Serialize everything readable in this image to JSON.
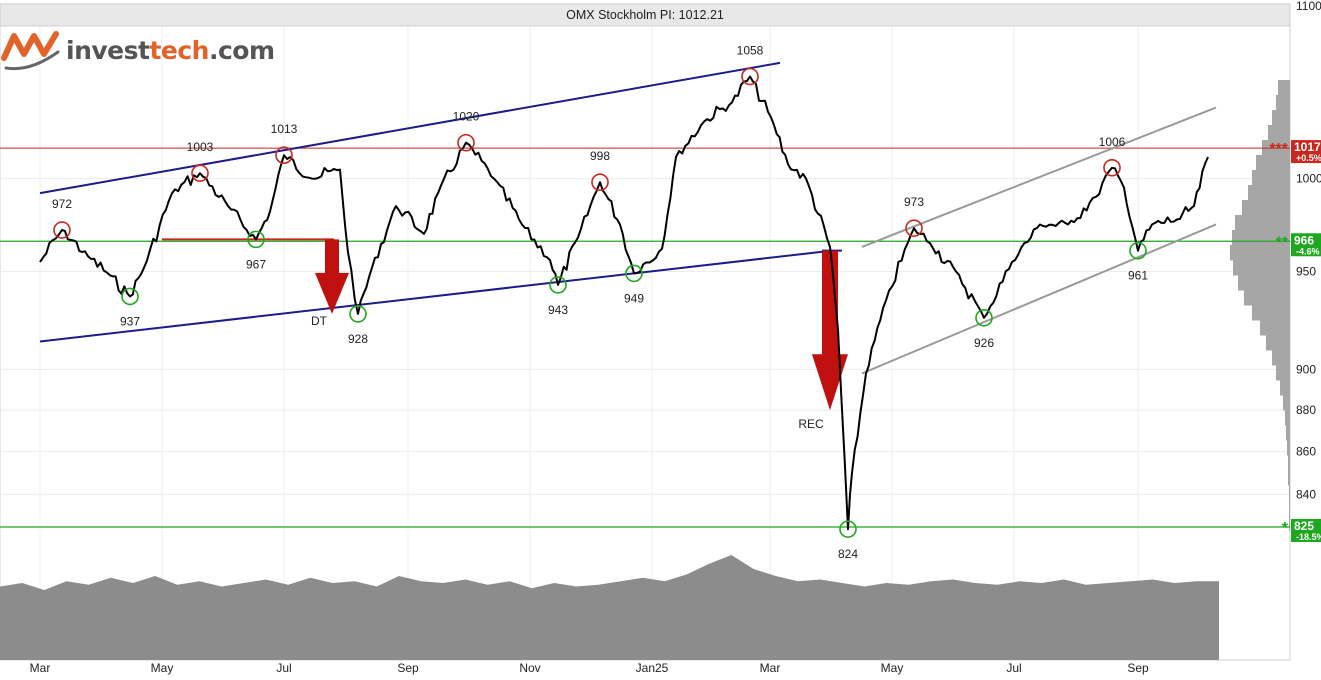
{
  "logo": {
    "part1": "invest",
    "part2": "tech",
    "part3": ".com"
  },
  "colors": {
    "price": "#000000",
    "resistance": "#c8281e",
    "support": "#1fa81f",
    "channel_blue": "#1c1c8c",
    "channel_gray": "#9a9a9a",
    "volume": "#8c8c8c",
    "arrow": "#c01010"
  },
  "chart_data": {
    "type": "line",
    "title": "OMX Stockholm PI: 1012.21",
    "last_value": 1012.21,
    "x_ticks": [
      "Mar",
      "May",
      "Jul",
      "Sep",
      "Nov",
      "Jan25",
      "Mar",
      "May",
      "Jul",
      "Sep"
    ],
    "y_ticks": [
      "1100",
      "1000",
      "950",
      "900",
      "880",
      "860",
      "840"
    ],
    "y_scale": "log",
    "ylim": [
      820,
      1100
    ],
    "price_series": [
      {
        "t": "2024-03-01",
        "v": 955
      },
      {
        "t": "2024-03-12",
        "v": 972
      },
      {
        "t": "2024-03-25",
        "v": 958
      },
      {
        "t": "2024-04-05",
        "v": 948
      },
      {
        "t": "2024-04-15",
        "v": 937
      },
      {
        "t": "2024-04-22",
        "v": 952
      },
      {
        "t": "2024-05-06",
        "v": 992
      },
      {
        "t": "2024-05-20",
        "v": 1003
      },
      {
        "t": "2024-06-03",
        "v": 985
      },
      {
        "t": "2024-06-17",
        "v": 967
      },
      {
        "t": "2024-06-24",
        "v": 982
      },
      {
        "t": "2024-07-01",
        "v": 1013
      },
      {
        "t": "2024-07-15",
        "v": 1000
      },
      {
        "t": "2024-07-29",
        "v": 1005
      },
      {
        "t": "2024-08-02",
        "v": 960
      },
      {
        "t": "2024-08-07",
        "v": 928
      },
      {
        "t": "2024-08-14",
        "v": 952
      },
      {
        "t": "2024-08-26",
        "v": 985
      },
      {
        "t": "2024-09-09",
        "v": 970
      },
      {
        "t": "2024-09-16",
        "v": 992
      },
      {
        "t": "2024-09-30",
        "v": 1020
      },
      {
        "t": "2024-10-14",
        "v": 1000
      },
      {
        "t": "2024-10-28",
        "v": 975
      },
      {
        "t": "2024-11-11",
        "v": 956
      },
      {
        "t": "2024-11-15",
        "v": 943
      },
      {
        "t": "2024-11-25",
        "v": 968
      },
      {
        "t": "2024-12-06",
        "v": 998
      },
      {
        "t": "2024-12-16",
        "v": 975
      },
      {
        "t": "2024-12-23",
        "v": 949
      },
      {
        "t": "2025-01-06",
        "v": 962
      },
      {
        "t": "2025-01-13",
        "v": 1012
      },
      {
        "t": "2025-01-27",
        "v": 1032
      },
      {
        "t": "2025-02-10",
        "v": 1043
      },
      {
        "t": "2025-02-19",
        "v": 1058
      },
      {
        "t": "2025-03-03",
        "v": 1030
      },
      {
        "t": "2025-03-10",
        "v": 1008
      },
      {
        "t": "2025-03-19",
        "v": 1000
      },
      {
        "t": "2025-03-31",
        "v": 963
      },
      {
        "t": "2025-04-04",
        "v": 920
      },
      {
        "t": "2025-04-09",
        "v": 824
      },
      {
        "t": "2025-04-11",
        "v": 850
      },
      {
        "t": "2025-04-18",
        "v": 898
      },
      {
        "t": "2025-04-28",
        "v": 935
      },
      {
        "t": "2025-05-12",
        "v": 973
      },
      {
        "t": "2025-05-20",
        "v": 965
      },
      {
        "t": "2025-06-02",
        "v": 950
      },
      {
        "t": "2025-06-16",
        "v": 926
      },
      {
        "t": "2025-06-30",
        "v": 955
      },
      {
        "t": "2025-07-14",
        "v": 975
      },
      {
        "t": "2025-07-28",
        "v": 975
      },
      {
        "t": "2025-08-11",
        "v": 990
      },
      {
        "t": "2025-08-19",
        "v": 1006
      },
      {
        "t": "2025-08-25",
        "v": 995
      },
      {
        "t": "2025-09-01",
        "v": 961
      },
      {
        "t": "2025-09-08",
        "v": 975
      },
      {
        "t": "2025-09-22",
        "v": 978
      },
      {
        "t": "2025-09-29",
        "v": 985
      },
      {
        "t": "2025-10-06",
        "v": 1012
      }
    ],
    "tops": [
      {
        "t": "2024-03-12",
        "v": 972,
        "label": "972"
      },
      {
        "t": "2024-05-20",
        "v": 1003,
        "label": "1003"
      },
      {
        "t": "2024-07-01",
        "v": 1013,
        "label": "1013"
      },
      {
        "t": "2024-09-30",
        "v": 1020,
        "label": "1020"
      },
      {
        "t": "2024-12-06",
        "v": 998,
        "label": "998"
      },
      {
        "t": "2025-02-19",
        "v": 1058,
        "label": "1058"
      },
      {
        "t": "2025-05-12",
        "v": 973,
        "label": "973"
      },
      {
        "t": "2025-08-19",
        "v": 1006,
        "label": "1006"
      }
    ],
    "bottoms": [
      {
        "t": "2024-04-15",
        "v": 937,
        "label": "937"
      },
      {
        "t": "2024-06-17",
        "v": 967,
        "label": "967"
      },
      {
        "t": "2024-08-07",
        "v": 928,
        "label": "928"
      },
      {
        "t": "2024-11-15",
        "v": 943,
        "label": "943"
      },
      {
        "t": "2024-12-23",
        "v": 949,
        "label": "949"
      },
      {
        "t": "2025-04-09",
        "v": 824,
        "label": "824"
      },
      {
        "t": "2025-06-16",
        "v": 926,
        "label": "926"
      },
      {
        "t": "2025-09-01",
        "v": 961,
        "label": "961"
      }
    ],
    "resistance": [
      {
        "v": 1017,
        "label": "1017",
        "pct": "+0.5%",
        "stars": "***"
      }
    ],
    "support": [
      {
        "v": 966,
        "label": "966",
        "pct": "-4.6%",
        "stars": "**"
      },
      {
        "v": 825,
        "label": "825",
        "pct": "-18.5%",
        "stars": "*"
      }
    ],
    "channels": [
      {
        "color": "blue",
        "from": {
          "t": "2024-03-01",
          "v": 992
        },
        "to": {
          "t": "2025-03-06",
          "v": 1066
        }
      },
      {
        "color": "blue",
        "from": {
          "t": "2024-03-01",
          "v": 914
        },
        "to": {
          "t": "2025-04-01",
          "v": 961
        }
      },
      {
        "color": "gray",
        "from": {
          "t": "2025-04-16",
          "v": 963
        },
        "to": {
          "t": "2025-10-10",
          "v": 1040
        }
      },
      {
        "color": "gray",
        "from": {
          "t": "2025-04-16",
          "v": 898
        },
        "to": {
          "t": "2025-10-10",
          "v": 975
        }
      }
    ],
    "patterns": [
      {
        "label": "DT",
        "neckline": 967,
        "from": "2024-05-20",
        "to": "2024-07-29",
        "target_from": 967,
        "target_to": 928,
        "at": "2024-07-25"
      },
      {
        "label": "REC",
        "neckline": 961,
        "from": "2025-03-31",
        "to": "2025-03-31",
        "target_from": 961,
        "target_to": 880,
        "at": "2025-03-31"
      }
    ],
    "volume": [
      42,
      44,
      40,
      45,
      43,
      47,
      44,
      48,
      43,
      45,
      42,
      44,
      46,
      43,
      47,
      44,
      45,
      42,
      48,
      45,
      44,
      46,
      43,
      45,
      41,
      44,
      42,
      43,
      45,
      47,
      45,
      49,
      55,
      60,
      52,
      48,
      45,
      46,
      44,
      42,
      44,
      43,
      45,
      46,
      44,
      43,
      45,
      44,
      46,
      43,
      44,
      45,
      46,
      44,
      45,
      45
    ],
    "volume_profile": [
      12,
      14,
      18,
      22,
      28,
      34,
      38,
      42,
      48,
      55,
      58,
      60,
      57,
      52,
      46,
      38,
      30,
      24,
      18,
      14,
      10,
      7,
      5,
      4,
      3,
      2,
      2,
      1,
      1,
      1
    ],
    "legend": "none",
    "grid": true
  }
}
